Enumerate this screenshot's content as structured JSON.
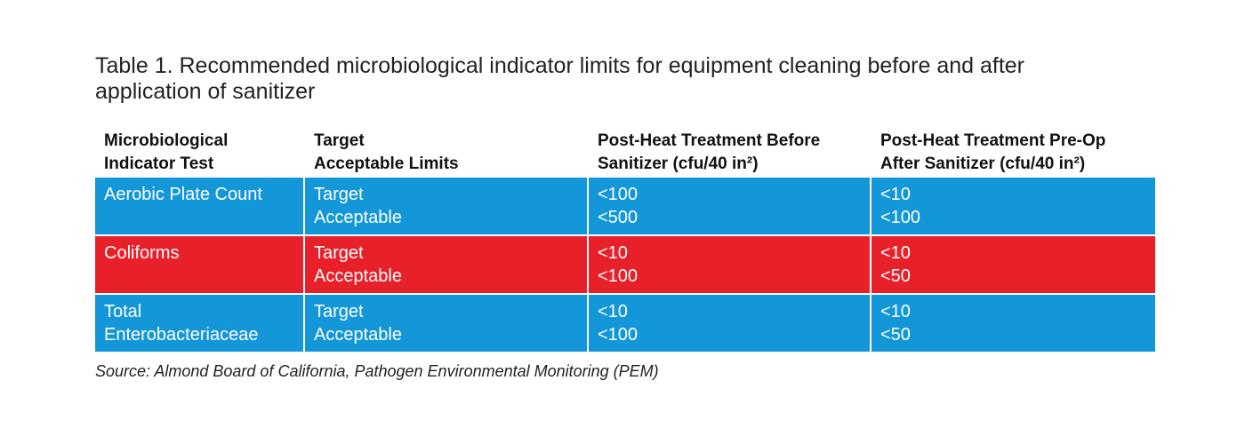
{
  "title": [
    "Table 1. Recommended microbiological indicator limits for equipment cleaning before and after",
    "application of sanitizer"
  ],
  "table": {
    "header": [
      [
        "Microbiological",
        "Indicator Test"
      ],
      [
        "Target",
        "Acceptable Limits"
      ],
      [
        "Post-Heat Treatment Before",
        "Sanitizer (cfu/40 in²)"
      ],
      [
        "Post-Heat Treatment Pre-Op",
        "After Sanitizer (cfu/40 in²)"
      ]
    ],
    "rows": [
      {
        "color": "#1497d8",
        "cells": [
          [
            "Aerobic Plate Count"
          ],
          [
            "Target",
            "Acceptable"
          ],
          [
            "<100",
            "<500"
          ],
          [
            "<10",
            "<100"
          ]
        ]
      },
      {
        "color": "#e8202a",
        "cells": [
          [
            "Coliforms"
          ],
          [
            "Target",
            "Acceptable"
          ],
          [
            "<10",
            "<100"
          ],
          [
            "<10",
            "<50"
          ]
        ]
      },
      {
        "color": "#1497d8",
        "cells": [
          [
            "Total",
            "Enterobacteriaceae"
          ],
          [
            "Target",
            "Acceptable"
          ],
          [
            "<10",
            "<100"
          ],
          [
            "<10",
            "<50"
          ]
        ]
      }
    ]
  },
  "source": "Source: Almond Board of California, Pathogen Environmental Monitoring (PEM)"
}
